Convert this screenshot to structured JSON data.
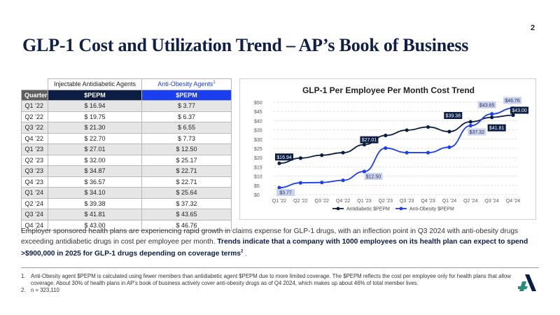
{
  "page_number": "2",
  "title": "GLP-1 Cost and Utilization Trend – AP’s Book of Business",
  "table": {
    "group_headers": {
      "antidiabetic": "Injectable Antidiabetic Agents",
      "antiobesity": "Anti-Obesity Agents",
      "antiobesity_sup": "1"
    },
    "column_headers": {
      "quarter": "Quarter",
      "antidiabetic": "$PEPM",
      "antiobesity": "$PEPM"
    },
    "rows": [
      {
        "quarter": "Q1 ’22",
        "antidiabetic": "$ 16.94",
        "antiobesity": "$ 3.77"
      },
      {
        "quarter": "Q2 ’22",
        "antidiabetic": "$ 19.75",
        "antiobesity": "$ 6.37"
      },
      {
        "quarter": "Q3 ’22",
        "antidiabetic": "$ 21.30",
        "antiobesity": "$ 6.55"
      },
      {
        "quarter": "Q4 ’22",
        "antidiabetic": "$ 22.70",
        "antiobesity": "$ 7.73"
      },
      {
        "quarter": "Q1 ’23",
        "antidiabetic": "$ 27.01",
        "antiobesity": "$ 12.50"
      },
      {
        "quarter": "Q2 ’23",
        "antidiabetic": "$ 32.00",
        "antiobesity": "$ 25.17"
      },
      {
        "quarter": "Q3 ’23",
        "antidiabetic": "$ 34.87",
        "antiobesity": "$ 22.71"
      },
      {
        "quarter": "Q4 ’23",
        "antidiabetic": "$ 36.57",
        "antiobesity": "$ 22.71"
      },
      {
        "quarter": "Q1 ’24",
        "antidiabetic": "$ 34.10",
        "antiobesity": "$ 25.64"
      },
      {
        "quarter": "Q2 ’24",
        "antidiabetic": "$ 39.38",
        "antiobesity": "$ 37.32"
      },
      {
        "quarter": "Q3 ’24",
        "antidiabetic": "$ 41.81",
        "antiobesity": "$ 43.65"
      },
      {
        "quarter": "Q4 ’24",
        "antidiabetic": "$ 43.00",
        "antiobesity": "$ 46.76"
      }
    ]
  },
  "chart_data": {
    "type": "line",
    "title": "GLP-1 Per Employee Per Month Cost Trend",
    "xlabel": "",
    "ylabel": "",
    "ylim": [
      0,
      50
    ],
    "y_ticks": [
      "$0",
      "$5",
      "$10",
      "$15",
      "$20",
      "$25",
      "$30",
      "$35",
      "$40",
      "$45",
      "$50"
    ],
    "categories": [
      "Q1 '22",
      "Q2 '22",
      "Q3 '22",
      "Q4 '22",
      "Q1 '23",
      "Q2 '23",
      "Q3 '23",
      "Q4 '23",
      "Q1 '24",
      "Q2 '24",
      "Q3 '24",
      "Q4 '24"
    ],
    "grid": true,
    "legend_position": "bottom",
    "series": [
      {
        "name": "Antidiabetic $PEPM",
        "color": "#0b1d42",
        "values": [
          16.94,
          19.75,
          21.3,
          22.7,
          27.01,
          32.0,
          34.87,
          36.57,
          34.1,
          39.38,
          41.81,
          43.0
        ]
      },
      {
        "name": "Anti-Obesity $PEPM",
        "color": "#1a3ef0",
        "values": [
          3.77,
          6.37,
          6.55,
          7.73,
          12.5,
          25.17,
          22.71,
          22.71,
          25.64,
          37.32,
          43.65,
          46.76
        ]
      }
    ],
    "data_labels": [
      {
        "series": 0,
        "index": 0,
        "text": "$16.94"
      },
      {
        "series": 0,
        "index": 4,
        "text": "$27.01"
      },
      {
        "series": 0,
        "index": 9,
        "text": "$39.38"
      },
      {
        "series": 0,
        "index": 10,
        "text": "$41.81"
      },
      {
        "series": 0,
        "index": 11,
        "text": "$43.00"
      },
      {
        "series": 1,
        "index": 0,
        "text": "$3.77"
      },
      {
        "series": 1,
        "index": 4,
        "text": "$12.50"
      },
      {
        "series": 1,
        "index": 9,
        "text": "$37.32"
      },
      {
        "series": 1,
        "index": 10,
        "text": "$43.65"
      },
      {
        "series": 1,
        "index": 11,
        "text": "$46.76"
      }
    ]
  },
  "body": {
    "text": "Employer sponsored health plans are experiencing rapid growth in claims expense for GLP-1 drugs, with an inflection point in Q3 2024 with anti-obesity drugs exceeding antidiabetic drugs in cost per employee per month. ",
    "bold": "Trends indicate that a company with 1000 employees on its health plan can expect to spend >$900,000 in 2025 for GLP-1 drugs depending on coverage terms",
    "bold_sup": "2",
    "end": " ."
  },
  "footnotes": [
    {
      "num": "1.",
      "text": "Anti-Obesity agent $PEPM is calculated using fewer members than antidiabetic agent $PEPM due to more limited coverage. The $PEPM reflects the cost per employee only for health plans that allow coverage. About 30% of health plans in AP’s book of business actively cover anti-obesity drugs as of Q4 2024, which makes up about 46% of total member lives."
    },
    {
      "num": "2.",
      "text": "n = 323,110"
    }
  ],
  "colors": {
    "navy": "#0b1d42",
    "blue": "#1a3ef0",
    "label_fill_blue": "#c8d3f3",
    "logo_teal": "#2a8c7c"
  },
  "logo": {
    "icon": "company-logo-icon"
  }
}
